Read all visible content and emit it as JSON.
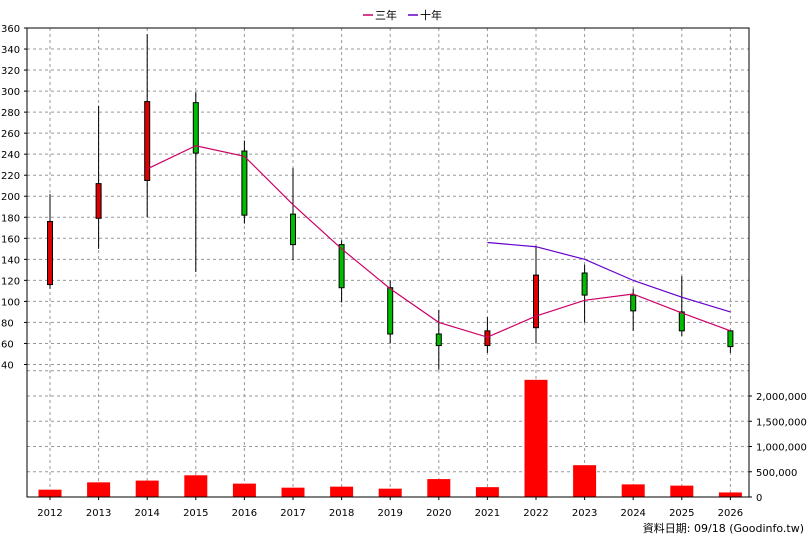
{
  "chart_data": {
    "type": "candlestick",
    "legend": [
      {
        "name": "三年",
        "color": "#cc0066"
      },
      {
        "name": "十年",
        "color": "#6600cc"
      }
    ],
    "legend_placement": "top-center",
    "grid": true,
    "x": [
      "2012",
      "2013",
      "2014",
      "2015",
      "2016",
      "2017",
      "2018",
      "2019",
      "2020",
      "2021",
      "2022",
      "2023",
      "2024",
      "2025",
      "2026"
    ],
    "price_axis": {
      "ylim": [
        30,
        360
      ],
      "ticks": [
        "360",
        "340",
        "320",
        "300",
        "280",
        "260",
        "240",
        "220",
        "200",
        "180",
        "160",
        "140",
        "120",
        "100",
        "80",
        "60",
        "40"
      ]
    },
    "volume_axis": {
      "ylim": [
        0,
        2500000
      ],
      "ticks": [
        "2,000,000",
        "1,500,000",
        "1,000,000",
        "500,000",
        "0"
      ]
    },
    "candles": [
      {
        "x": "2012",
        "open": 116,
        "close": 176,
        "high": 202,
        "low": 112,
        "color": "#dd0000"
      },
      {
        "x": "2013",
        "open": 179,
        "close": 212,
        "high": 286,
        "low": 150,
        "color": "#dd0000"
      },
      {
        "x": "2014",
        "open": 215,
        "close": 290,
        "high": 354,
        "low": 180,
        "color": "#dd0000"
      },
      {
        "x": "2015",
        "open": 289,
        "close": 241,
        "high": 299,
        "low": 128,
        "color": "#00bb00"
      },
      {
        "x": "2016",
        "open": 243,
        "close": 182,
        "high": 253,
        "low": 174,
        "color": "#00bb00"
      },
      {
        "x": "2017",
        "open": 183,
        "close": 154,
        "high": 227,
        "low": 139,
        "color": "#00bb00"
      },
      {
        "x": "2018",
        "open": 154,
        "close": 113,
        "high": 158,
        "low": 99,
        "color": "#00bb00"
      },
      {
        "x": "2019",
        "open": 113,
        "close": 69,
        "high": 120,
        "low": 60,
        "color": "#00bb00"
      },
      {
        "x": "2020",
        "open": 69,
        "close": 58,
        "high": 92,
        "low": 35,
        "color": "#00bb00"
      },
      {
        "x": "2021",
        "open": 58,
        "close": 72,
        "high": 85,
        "low": 51,
        "color": "#dd0000"
      },
      {
        "x": "2022",
        "open": 75,
        "close": 125,
        "high": 153,
        "low": 60,
        "color": "#dd0000"
      },
      {
        "x": "2023",
        "open": 127,
        "close": 106,
        "high": 135,
        "low": 80,
        "color": "#00bb00"
      },
      {
        "x": "2024",
        "open": 106,
        "close": 91,
        "high": 112,
        "low": 72,
        "color": "#00bb00"
      },
      {
        "x": "2025",
        "open": 90,
        "close": 72,
        "high": 124,
        "low": 67,
        "color": "#00bb00"
      },
      {
        "x": "2026",
        "open": 72,
        "close": 57,
        "high": 73,
        "low": 51,
        "color": "#00bb00"
      }
    ],
    "ma_3yr": {
      "name": "三年",
      "x": [
        "2014",
        "2015",
        "2016",
        "2017",
        "2018",
        "2019",
        "2020",
        "2021",
        "2022",
        "2023",
        "2024",
        "2025",
        "2026"
      ],
      "values": [
        226,
        248,
        238,
        192,
        150,
        112,
        80,
        66,
        86,
        101,
        107,
        89,
        72
      ]
    },
    "ma_10yr": {
      "name": "十年",
      "x": [
        "2021",
        "2022",
        "2023",
        "2024",
        "2025",
        "2026"
      ],
      "values": [
        156,
        152,
        140,
        120,
        104,
        90
      ]
    },
    "volume": {
      "color": "#ff0000",
      "values": [
        145000,
        290000,
        325000,
        430000,
        265000,
        185000,
        205000,
        165000,
        355000,
        195000,
        2320000,
        630000,
        250000,
        225000,
        90000
      ]
    },
    "footer": "資料日期: 09/18 (Goodinfo.tw)"
  }
}
